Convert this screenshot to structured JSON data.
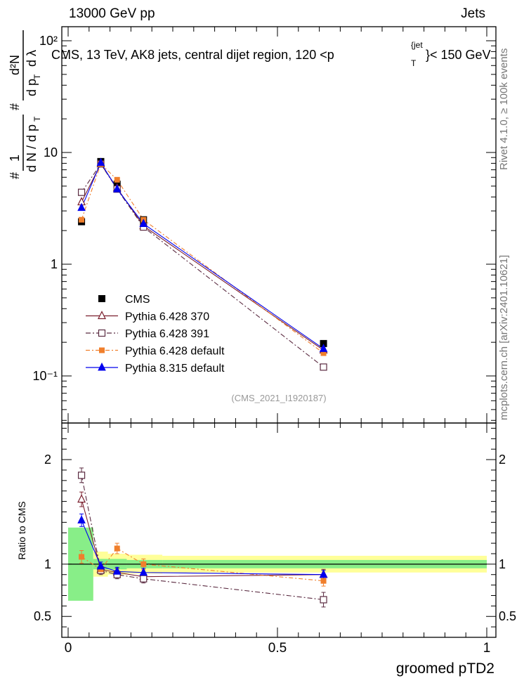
{
  "header": {
    "left": "13000 GeV pp",
    "right": "Jets"
  },
  "side_labels": {
    "rivet": "Rivet 4.1.0, ≥ 100k events",
    "mcplots": "mcplots.cern.ch [arXiv:2401.10621]"
  },
  "chart_data": {
    "type": "line",
    "title": "CMS, 13 TeV, AK8 jets, central dijet region, 120 <p",
    "title_sup": "{jet",
    "title_sub": "T",
    "title_tail": "}< 150 GeV",
    "watermark": "(CMS_2021_I1920187)",
    "ylabel_main": "1/(dN/dpT) d2N/(dpT dλ)",
    "ylabel_main_parts": {
      "hash1": "#",
      "one": "1",
      "dNdpT": "d N / d p",
      "T1": "T",
      "hash2": "#",
      "d2N": "d²N",
      "dpdl": "d p",
      "T2": "T",
      "dl": "d λ"
    },
    "xlabel": "groomed pTD2",
    "ratio_ylabel": "Ratio to CMS",
    "xlim": [
      0,
      1
    ],
    "ylim_main": [
      0.04,
      150
    ],
    "ylim_ratio": [
      0.3,
      2.35
    ],
    "yscale_main": "log",
    "x_ticks": [
      "0",
      "0.5",
      "1"
    ],
    "main_y_ticks": [
      "10⁻¹",
      "1",
      "10",
      "10²"
    ],
    "ratio_y_ticks": [
      "0.5",
      "1",
      "2"
    ],
    "bins": [
      {
        "lo": 0.0,
        "hi": 0.06
      },
      {
        "lo": 0.06,
        "hi": 0.095
      },
      {
        "lo": 0.095,
        "hi": 0.14
      },
      {
        "lo": 0.14,
        "hi": 0.225
      },
      {
        "lo": 0.225,
        "hi": 1.0
      }
    ],
    "x": [
      0.032,
      0.078,
      0.117,
      0.18,
      0.61
    ],
    "cms": {
      "name": "CMS",
      "values": [
        2.4,
        8.3,
        5.2,
        2.5,
        0.195
      ],
      "band_inner": [
        0.35,
        0.05,
        0.05,
        0.04,
        0.04
      ],
      "band_outer": [
        0.32,
        0.12,
        0.1,
        0.09,
        0.08
      ]
    },
    "series": [
      {
        "name": "Pythia 6.428 370",
        "color": "#7b1f2e",
        "marker": "open-triangle",
        "dash": "",
        "values": [
          3.6,
          7.9,
          4.8,
          2.2,
          0.17
        ],
        "ratio": [
          1.62,
          0.95,
          0.92,
          0.88,
          0.9
        ],
        "ratio_err": [
          0.07,
          0.04,
          0.04,
          0.04,
          0.05
        ]
      },
      {
        "name": "Pythia 6.428 391",
        "color": "#5a2a40",
        "marker": "open-square",
        "dash": "7,3,2,3",
        "values": [
          4.4,
          7.9,
          4.7,
          2.15,
          0.12
        ],
        "ratio": [
          1.85,
          0.94,
          0.9,
          0.86,
          0.66
        ],
        "ratio_err": [
          0.07,
          0.04,
          0.04,
          0.04,
          0.07
        ]
      },
      {
        "name": "Pythia 6.428 default",
        "color": "#f07f2c",
        "marker": "filled-square",
        "dash": "6,3,2,3",
        "values": [
          2.5,
          7.9,
          5.7,
          2.5,
          0.16
        ],
        "ratio": [
          1.07,
          0.95,
          1.15,
          1.0,
          0.84
        ],
        "ratio_err": [
          0.06,
          0.04,
          0.05,
          0.05,
          0.05
        ]
      },
      {
        "name": "Pythia 8.315 default",
        "color": "#0000ee",
        "marker": "filled-triangle",
        "dash": "",
        "values": [
          3.2,
          8.1,
          4.7,
          2.3,
          0.175
        ],
        "ratio": [
          1.42,
          0.98,
          0.93,
          0.92,
          0.9
        ],
        "ratio_err": [
          0.06,
          0.04,
          0.04,
          0.04,
          0.04
        ]
      }
    ]
  }
}
